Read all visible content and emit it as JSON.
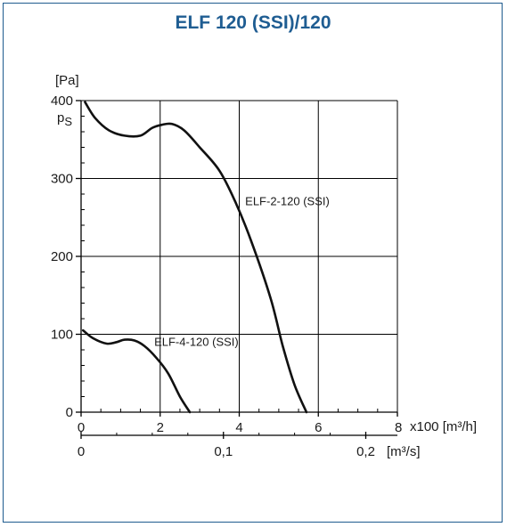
{
  "chart_data": {
    "type": "line",
    "title": "ELF 120 (SSI)/120",
    "ylabel_unit": "[Pa]",
    "ylabel_symbol": "p",
    "ylabel_subscript": "S",
    "x_unit_primary": "x100 [m³/h]",
    "x_unit_secondary": "[m³/s]",
    "xlim": [
      0,
      8
    ],
    "ylim": [
      0,
      400
    ],
    "x_ticks": [
      "0",
      "2",
      "4",
      "6",
      "8"
    ],
    "y_ticks": [
      "0",
      "100",
      "200",
      "300",
      "400"
    ],
    "x2_ticks": [
      {
        "value": 0,
        "label": "0"
      },
      {
        "value": 3.6,
        "label": "0,1"
      },
      {
        "value": 7.2,
        "label": "0,2"
      }
    ],
    "grid": true,
    "series": [
      {
        "name": "ELF-2-120 (SSI)",
        "x": [
          0.1,
          0.35,
          0.7,
          1.1,
          1.5,
          1.8,
          2.05,
          2.3,
          2.6,
          3.0,
          3.5,
          3.9,
          4.3,
          4.8,
          5.1,
          5.4,
          5.7
        ],
        "y": [
          398,
          378,
          362,
          355,
          355,
          365,
          369,
          370,
          362,
          340,
          310,
          270,
          220,
          145,
          85,
          35,
          0
        ]
      },
      {
        "name": "ELF-4-120 (SSI)",
        "x": [
          0.05,
          0.3,
          0.65,
          0.9,
          1.1,
          1.35,
          1.6,
          1.9,
          2.2,
          2.5,
          2.75
        ],
        "y": [
          105,
          95,
          88,
          90,
          93,
          92,
          85,
          70,
          50,
          20,
          0
        ]
      }
    ],
    "series_label_positions": [
      {
        "x": 4.15,
        "y": 266
      },
      {
        "x": 1.85,
        "y": 85
      }
    ]
  }
}
